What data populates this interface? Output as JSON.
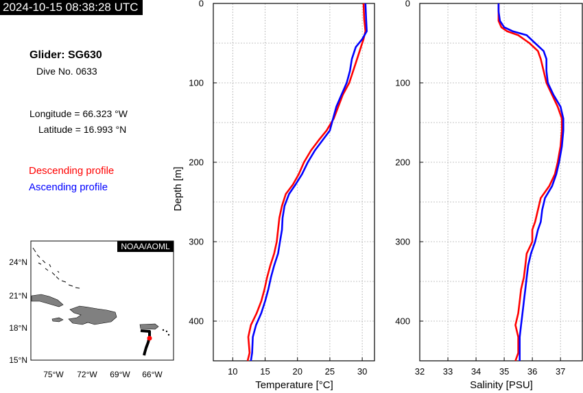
{
  "header": {
    "timestamp": "2024-10-15 08:38:28 UTC",
    "glider": "Glider: SG630",
    "dive": "Dive No. 0633",
    "longitude": "Longitude = 66.323 °W",
    "latitude": "Latitude = 16.993 °N"
  },
  "legend": {
    "descending": "Descending profile",
    "ascending": "Ascending profile"
  },
  "colors": {
    "descending": "#ff0000",
    "ascending": "#0000ff",
    "land": "#808080",
    "track": "#000000"
  },
  "map": {
    "credit": "NOAA/AOML",
    "lat_ticks": [
      "15°N",
      "18°N",
      "21°N",
      "24°N"
    ],
    "lon_ticks": [
      "75°W",
      "72°W",
      "69°W",
      "66°W"
    ]
  },
  "chart_data": [
    {
      "type": "line",
      "xlabel": "Temperature [°C]",
      "ylabel": "Depth [m]",
      "xlim": [
        7,
        32
      ],
      "ylim": [
        450,
        0
      ],
      "xticks": [
        10,
        15,
        20,
        25,
        30
      ],
      "yticks": [
        0,
        100,
        200,
        300,
        400
      ],
      "grid": true,
      "series": [
        {
          "name": "Descending profile",
          "color": "#ff0000",
          "points": [
            [
              30.2,
              0
            ],
            [
              30.3,
              20
            ],
            [
              30.5,
              35
            ],
            [
              30.2,
              45
            ],
            [
              29.8,
              55
            ],
            [
              29.2,
              70
            ],
            [
              28.6,
              85
            ],
            [
              28,
              100
            ],
            [
              27,
              115
            ],
            [
              26.3,
              130
            ],
            [
              25.6,
              145
            ],
            [
              24.5,
              160
            ],
            [
              23.3,
              172
            ],
            [
              22.1,
              185
            ],
            [
              21,
              200
            ],
            [
              20.2,
              215
            ],
            [
              19.3,
              228
            ],
            [
              18.2,
              240
            ],
            [
              17.6,
              255
            ],
            [
              17.2,
              270
            ],
            [
              17,
              285
            ],
            [
              16.8,
              300
            ],
            [
              16.4,
              315
            ],
            [
              15.8,
              330
            ],
            [
              15.3,
              345
            ],
            [
              14.9,
              360
            ],
            [
              14.4,
              375
            ],
            [
              13.7,
              390
            ],
            [
              12.8,
              405
            ],
            [
              12.4,
              420
            ],
            [
              12.6,
              440
            ],
            [
              12.3,
              450
            ]
          ]
        },
        {
          "name": "Ascending profile",
          "color": "#0000ff",
          "points": [
            [
              30.5,
              0
            ],
            [
              30.6,
              20
            ],
            [
              30.7,
              35
            ],
            [
              30,
              45
            ],
            [
              29,
              55
            ],
            [
              28.4,
              70
            ],
            [
              28.1,
              85
            ],
            [
              27.6,
              100
            ],
            [
              26.8,
              115
            ],
            [
              26,
              130
            ],
            [
              25.5,
              145
            ],
            [
              25,
              160
            ],
            [
              23.9,
              172
            ],
            [
              22.7,
              185
            ],
            [
              21.6,
              200
            ],
            [
              20.7,
              215
            ],
            [
              19.7,
              228
            ],
            [
              18.7,
              240
            ],
            [
              18,
              255
            ],
            [
              17.7,
              270
            ],
            [
              17.6,
              285
            ],
            [
              17.3,
              300
            ],
            [
              17,
              315
            ],
            [
              16.4,
              330
            ],
            [
              15.9,
              345
            ],
            [
              15.5,
              360
            ],
            [
              15,
              375
            ],
            [
              14.4,
              390
            ],
            [
              13.6,
              405
            ],
            [
              13.1,
              420
            ],
            [
              13,
              440
            ],
            [
              12.8,
              450
            ]
          ]
        }
      ]
    },
    {
      "type": "line",
      "xlabel": "Salinity [PSU]",
      "ylabel": "",
      "xlim": [
        32,
        37.8
      ],
      "ylim": [
        450,
        0
      ],
      "xticks": [
        32,
        33,
        34,
        35,
        36,
        37
      ],
      "yticks": [
        0,
        100,
        200,
        300,
        400
      ],
      "grid": true,
      "series": [
        {
          "name": "Descending profile",
          "color": "#ff0000",
          "points": [
            [
              34.8,
              0
            ],
            [
              34.8,
              10
            ],
            [
              34.8,
              22
            ],
            [
              34.9,
              30
            ],
            [
              35.1,
              35
            ],
            [
              35.5,
              40
            ],
            [
              35.9,
              50
            ],
            [
              36.2,
              60
            ],
            [
              36.3,
              70
            ],
            [
              36.4,
              85
            ],
            [
              36.5,
              100
            ],
            [
              36.7,
              115
            ],
            [
              36.9,
              130
            ],
            [
              37.05,
              145
            ],
            [
              37.05,
              160
            ],
            [
              37,
              180
            ],
            [
              36.9,
              200
            ],
            [
              36.8,
              215
            ],
            [
              36.6,
              230
            ],
            [
              36.3,
              245
            ],
            [
              36.2,
              260
            ],
            [
              36.1,
              275
            ],
            [
              36,
              285
            ],
            [
              36,
              300
            ],
            [
              35.8,
              315
            ],
            [
              35.75,
              330
            ],
            [
              35.7,
              345
            ],
            [
              35.6,
              360
            ],
            [
              35.55,
              375
            ],
            [
              35.5,
              390
            ],
            [
              35.4,
              405
            ],
            [
              35.5,
              420
            ],
            [
              35.5,
              440
            ],
            [
              35.4,
              450
            ]
          ]
        },
        {
          "name": "Ascending profile",
          "color": "#0000ff",
          "points": [
            [
              34.8,
              0
            ],
            [
              34.8,
              10
            ],
            [
              34.85,
              22
            ],
            [
              35,
              30
            ],
            [
              35.3,
              35
            ],
            [
              35.8,
              40
            ],
            [
              36.1,
              50
            ],
            [
              36.4,
              60
            ],
            [
              36.5,
              70
            ],
            [
              36.5,
              85
            ],
            [
              36.55,
              100
            ],
            [
              36.75,
              115
            ],
            [
              37,
              130
            ],
            [
              37.1,
              145
            ],
            [
              37.1,
              160
            ],
            [
              37.05,
              180
            ],
            [
              36.95,
              200
            ],
            [
              36.85,
              215
            ],
            [
              36.7,
              230
            ],
            [
              36.45,
              245
            ],
            [
              36.35,
              260
            ],
            [
              36.3,
              275
            ],
            [
              36.2,
              285
            ],
            [
              36.1,
              300
            ],
            [
              35.95,
              315
            ],
            [
              35.85,
              330
            ],
            [
              35.8,
              345
            ],
            [
              35.75,
              360
            ],
            [
              35.7,
              375
            ],
            [
              35.65,
              390
            ],
            [
              35.6,
              405
            ],
            [
              35.55,
              420
            ],
            [
              35.55,
              440
            ],
            [
              35.55,
              450
            ]
          ]
        }
      ]
    }
  ]
}
